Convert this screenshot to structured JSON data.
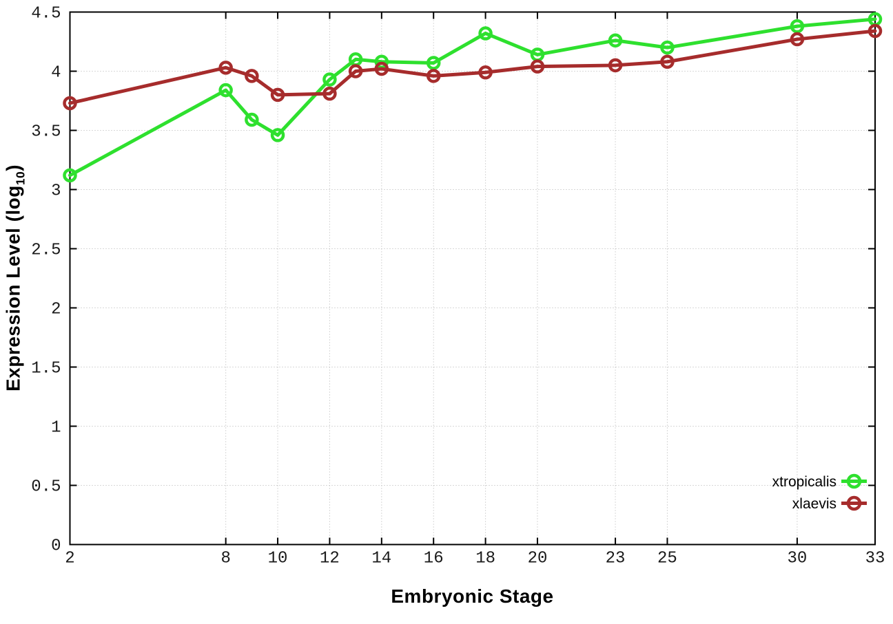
{
  "figure": {
    "background": "#ffffff",
    "border_color": "#000000",
    "grid_color": "#b0b0b0",
    "tick_label_color": "#1a1a1a"
  },
  "chart_data": {
    "type": "line",
    "title": "",
    "xlabel": "Embryonic Stage",
    "ylabel_prefix": "Expression Level (log",
    "ylabel_sub": "10",
    "ylabel_suffix": ")",
    "xlim": [
      2,
      33
    ],
    "ylim": [
      0,
      4.5
    ],
    "grid": true,
    "legend_position": "bottom-right",
    "x_ticks": [
      {
        "value": 2,
        "label": "2"
      },
      {
        "value": 8,
        "label": "8"
      },
      {
        "value": 10,
        "label": "10"
      },
      {
        "value": 12,
        "label": "12"
      },
      {
        "value": 14,
        "label": "14"
      },
      {
        "value": 16,
        "label": "16"
      },
      {
        "value": 18,
        "label": "18"
      },
      {
        "value": 20,
        "label": "20"
      },
      {
        "value": 23,
        "label": "23"
      },
      {
        "value": 25,
        "label": "25"
      },
      {
        "value": 30,
        "label": "30"
      },
      {
        "value": 33,
        "label": "33"
      }
    ],
    "y_ticks": [
      {
        "value": 0,
        "label": "0"
      },
      {
        "value": 0.5,
        "label": "0.5"
      },
      {
        "value": 1,
        "label": "1"
      },
      {
        "value": 1.5,
        "label": "1.5"
      },
      {
        "value": 2,
        "label": "2"
      },
      {
        "value": 2.5,
        "label": "2.5"
      },
      {
        "value": 3,
        "label": "3"
      },
      {
        "value": 3.5,
        "label": "3.5"
      },
      {
        "value": 4,
        "label": "4"
      },
      {
        "value": 4.5,
        "label": "4.5"
      }
    ],
    "x": [
      2,
      8,
      9,
      10,
      12,
      13,
      14,
      16,
      18,
      20,
      23,
      25,
      30,
      33
    ],
    "series": [
      {
        "name": "xtropicalis",
        "color": "#2ee02e",
        "marker": "open-circle",
        "values": [
          3.12,
          3.84,
          3.59,
          3.46,
          3.93,
          4.1,
          4.08,
          4.07,
          4.32,
          4.14,
          4.26,
          4.2,
          4.38,
          4.44
        ]
      },
      {
        "name": "xlaevis",
        "color": "#a62c2c",
        "marker": "open-circle",
        "values": [
          3.73,
          4.03,
          3.96,
          3.8,
          3.81,
          4.0,
          4.02,
          3.96,
          3.99,
          4.04,
          4.05,
          4.08,
          4.27,
          4.34
        ]
      }
    ]
  }
}
